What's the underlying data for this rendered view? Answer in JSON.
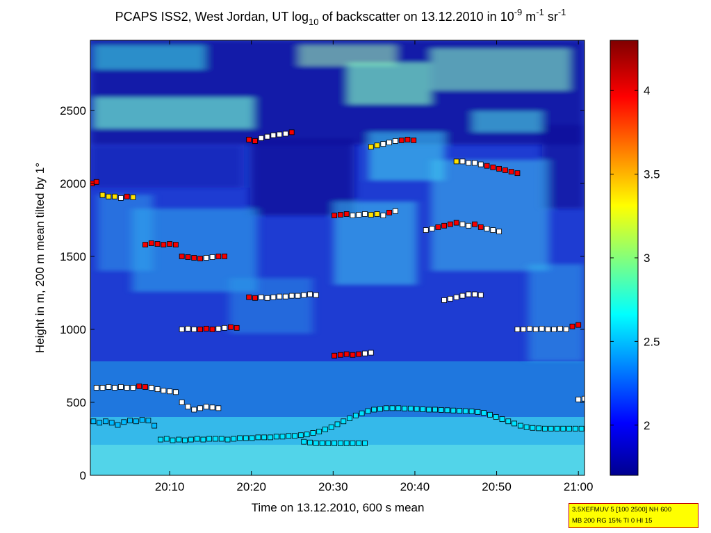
{
  "colors": {
    "background": "#ffffff",
    "info_box_bg": "#ffff00",
    "info_box_border": "#c00000",
    "marker_edge": "#000000",
    "colormap": "jet"
  },
  "chart_data": {
    "type": "heatmap",
    "title": {
      "prefix": "PCAPS ISS2, West Jordan, UT log",
      "sub1": "10",
      "middle": " of backscatter on 13.12.2010 in 10",
      "sup1": "-9",
      "m_unit": " m",
      "sup2": "-1",
      "sr_unit": " sr",
      "sup3": "-1"
    },
    "xlabel": "Time on 13.12.2010, 600 s mean",
    "ylabel": "Height in m, 200 m mean tilted by 1°",
    "x_range_minutes": [
      20.3,
      20.75
    ],
    "x_ticks": [
      {
        "label": "20:10",
        "value": 10
      },
      {
        "label": "20:20",
        "value": 20
      },
      {
        "label": "20:30",
        "value": 30
      },
      {
        "label": "20:40",
        "value": 40
      },
      {
        "label": "20:50",
        "value": 50
      },
      {
        "label": "21:00",
        "value": 60
      }
    ],
    "x_domain": [
      0.3,
      60.75
    ],
    "y_domain": [
      0,
      2980
    ],
    "y_ticks": [
      0,
      500,
      1000,
      1500,
      2000,
      2500
    ],
    "colorbar": {
      "range": [
        1.7,
        4.3
      ],
      "ticks": [
        "2",
        "2.5",
        "3",
        "3.5",
        "4"
      ],
      "tick_values": [
        2,
        2.5,
        3,
        3.5,
        4
      ]
    },
    "field_description_values": {
      "surface_layer_max": 2.65,
      "boundary_layer_top_m": 460,
      "background_min": 1.75
    },
    "grid": false,
    "series": [
      {
        "marker": "square",
        "points": [
          [
            0.5,
            370,
            2.5
          ],
          [
            1.5,
            360,
            2.5
          ],
          [
            2.5,
            370,
            2.5
          ],
          [
            3.5,
            360,
            2.5
          ],
          [
            4.5,
            345,
            2.5
          ],
          [
            5.5,
            365,
            2.5
          ],
          [
            6.5,
            375,
            2.5
          ],
          [
            7.5,
            370,
            2.5
          ],
          [
            8.5,
            380,
            2.5
          ],
          [
            9.5,
            375,
            2.5
          ],
          [
            10.5,
            340,
            2.5
          ],
          [
            11.5,
            245,
            2.6
          ],
          [
            12.5,
            250,
            2.6
          ],
          [
            13.5,
            240,
            2.6
          ],
          [
            14.5,
            245,
            2.6
          ],
          [
            15.5,
            240,
            2.6
          ],
          [
            16.5,
            245,
            2.6
          ],
          [
            17.5,
            250,
            2.6
          ],
          [
            18.5,
            245,
            2.6
          ],
          [
            19.5,
            250,
            2.6
          ],
          [
            20.5,
            250,
            2.6
          ],
          [
            21.5,
            250,
            2.6
          ],
          [
            22.5,
            245,
            2.6
          ],
          [
            23.5,
            250,
            2.6
          ],
          [
            24.5,
            255,
            2.6
          ],
          [
            25.5,
            255,
            2.6
          ],
          [
            26.5,
            255,
            2.6
          ],
          [
            27.5,
            260,
            2.6
          ],
          [
            28.5,
            260,
            2.6
          ],
          [
            29.5,
            260,
            2.6
          ],
          [
            30.5,
            265,
            2.6
          ],
          [
            31.5,
            265,
            2.6
          ],
          [
            32.5,
            270,
            2.6
          ],
          [
            33.5,
            270,
            2.6
          ],
          [
            34.5,
            275,
            2.6
          ],
          [
            35.5,
            280,
            2.6
          ],
          [
            36.5,
            290,
            2.6
          ],
          [
            37.5,
            300,
            2.6
          ],
          [
            38.5,
            315,
            2.6
          ],
          [
            39.5,
            330,
            2.6
          ],
          [
            40.5,
            350,
            2.6
          ],
          [
            41.5,
            370,
            2.6
          ],
          [
            42.5,
            390,
            2.6
          ],
          [
            43.5,
            410,
            2.6
          ],
          [
            44.5,
            425,
            2.6
          ],
          [
            45.5,
            440,
            2.6
          ],
          [
            46.5,
            450,
            2.6
          ],
          [
            47.5,
            455,
            2.6
          ],
          [
            48.5,
            460,
            2.6
          ],
          [
            49.5,
            460,
            2.6
          ],
          [
            50.5,
            460,
            2.6
          ],
          [
            51.5,
            458,
            2.6
          ],
          [
            52.5,
            458,
            2.6
          ],
          [
            53.5,
            455,
            2.6
          ],
          [
            54.5,
            452,
            2.6
          ],
          [
            55.5,
            450,
            2.6
          ],
          [
            56.5,
            450,
            2.6
          ],
          [
            57.5,
            448,
            2.6
          ],
          [
            58.5,
            446,
            2.6
          ],
          [
            59.5,
            444,
            2.6
          ],
          [
            60.5,
            442,
            2.6
          ],
          [
            61.5,
            440,
            2.6
          ],
          [
            62.5,
            438,
            2.6
          ],
          [
            63.5,
            434,
            2.6
          ],
          [
            64.5,
            428,
            2.6
          ],
          [
            65.5,
            415,
            2.6
          ],
          [
            66.5,
            400,
            2.6
          ],
          [
            67.5,
            385,
            2.6
          ],
          [
            68.5,
            370,
            2.6
          ],
          [
            69.5,
            355,
            2.6
          ],
          [
            70.5,
            340,
            2.6
          ],
          [
            71.5,
            330,
            2.6
          ],
          [
            72.5,
            325,
            2.6
          ],
          [
            73.5,
            322,
            2.6
          ],
          [
            74.5,
            320,
            2.6
          ],
          [
            75.5,
            320,
            2.6
          ],
          [
            76.5,
            320,
            2.6
          ],
          [
            77.5,
            320,
            2.6
          ],
          [
            78.5,
            320,
            2.6
          ],
          [
            79.5,
            320,
            2.6
          ],
          [
            80.5,
            320,
            2.6
          ]
        ]
      }
    ]
  },
  "info_box": {
    "line1": "3.5XEFMUV 5 [100 2500] NH 600",
    "line2": "MB 200 RG 15% TI 0 HI 15"
  }
}
